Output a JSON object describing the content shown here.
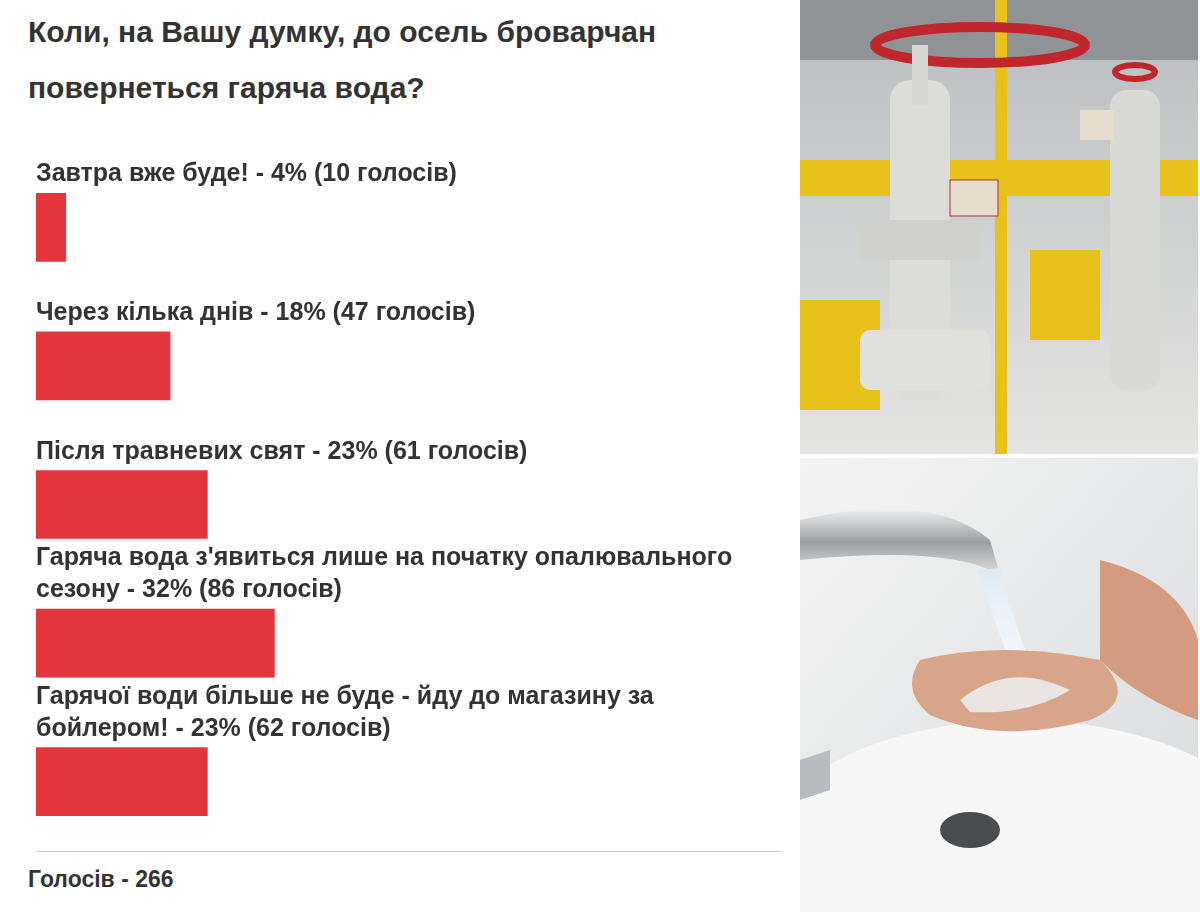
{
  "chart_data": {
    "type": "bar",
    "orientation": "horizontal",
    "title": "Коли, на Вашу думку, до осель броварчан повернеться гаряча вода?",
    "categories": [
      "Завтра вже буде! - 4% (10 голосів)",
      "Через кілька днів - 18% (47 голосів)",
      "Після травневих свят - 23% (61 голосів)",
      "Гаряча вода з'явиться лише на початку опалювального сезону - 32% (86 голосів)",
      "Гарячої води більше не буде - йду до магазину за бойлером! - 23% (62 голосів)"
    ],
    "values": [
      4,
      18,
      23,
      32,
      23
    ],
    "color": "#e3363c",
    "xlim": [
      0,
      100
    ],
    "grid": false,
    "tick_labels": false,
    "footer": "Голосів - 266"
  }
}
